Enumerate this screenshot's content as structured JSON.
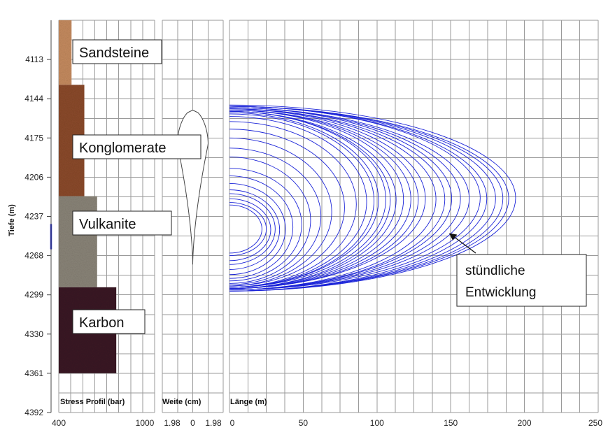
{
  "colors": {
    "sandstone": "#c58b5f",
    "conglomerate": "#8b4a2b",
    "volcanic": "#8a8478",
    "carbon": "#3a1a24",
    "fracture": "#1a23d8",
    "grid": "#9a9a9a",
    "marker": "#1a23d8"
  },
  "chart_data": {
    "type": "line",
    "ylabel": "Tiefe (m)",
    "y_ticks": [
      "4113",
      "4144",
      "4175",
      "4206",
      "4237",
      "4268",
      "4299",
      "4330",
      "4361",
      "4392"
    ],
    "ylim": [
      4082,
      4392
    ],
    "y_inverted": true,
    "grid": true,
    "panels": [
      {
        "id": "stress",
        "label": "Stress Profil (bar)",
        "xlim": [
          400,
          1000
        ],
        "x_ticks": [
          "400",
          "1000"
        ],
        "layers": [
          {
            "name": "Sandsteine",
            "top": 4082,
            "bottom": 4133,
            "stress": 480,
            "color": "sandstone"
          },
          {
            "name": "Konglomerate",
            "top": 4133,
            "bottom": 4221,
            "stress": 560,
            "color": "conglomerate"
          },
          {
            "name": "Vulkanite",
            "top": 4221,
            "bottom": 4293,
            "stress": 640,
            "color": "volcanic"
          },
          {
            "name": "Karbon",
            "top": 4293,
            "bottom": 4361,
            "stress": 760,
            "color": "carbon"
          }
        ],
        "marker": {
          "top": 4243,
          "bottom": 4263
        }
      },
      {
        "id": "width",
        "label": "Weite (cm)",
        "xlim": [
          -1.98,
          1.98
        ],
        "x_ticks": [
          "1.98",
          "0",
          "1.98"
        ],
        "profile": {
          "top": 4153,
          "bottom": 4275,
          "max_half_width": 1.0,
          "max_depth": 4180
        }
      },
      {
        "id": "length",
        "label": "Länge (m)",
        "xlim": [
          0,
          250
        ],
        "x_ticks": [
          "0",
          "50",
          "100",
          "150",
          "200",
          "250"
        ],
        "fractures": [
          {
            "length": 22,
            "top": 4228,
            "bottom": 4266
          },
          {
            "length": 25,
            "top": 4226,
            "bottom": 4268
          },
          {
            "length": 28,
            "top": 4223,
            "bottom": 4272
          },
          {
            "length": 31,
            "top": 4219,
            "bottom": 4275
          },
          {
            "length": 34,
            "top": 4216,
            "bottom": 4279
          },
          {
            "length": 38,
            "top": 4211,
            "bottom": 4283
          },
          {
            "length": 43,
            "top": 4205,
            "bottom": 4286
          },
          {
            "length": 49,
            "top": 4199,
            "bottom": 4288
          },
          {
            "length": 55,
            "top": 4190,
            "bottom": 4290
          },
          {
            "length": 62,
            "top": 4183,
            "bottom": 4291
          },
          {
            "length": 70,
            "top": 4175,
            "bottom": 4292
          },
          {
            "length": 78,
            "top": 4168,
            "bottom": 4292
          },
          {
            "length": 86,
            "top": 4162,
            "bottom": 4293
          },
          {
            "length": 93,
            "top": 4158,
            "bottom": 4293
          },
          {
            "length": 98,
            "top": 4156,
            "bottom": 4293
          },
          {
            "length": 102,
            "top": 4155,
            "bottom": 4293
          },
          {
            "length": 106,
            "top": 4154,
            "bottom": 4293
          },
          {
            "length": 110,
            "top": 4154,
            "bottom": 4294
          },
          {
            "length": 114,
            "top": 4154,
            "bottom": 4294
          },
          {
            "length": 118,
            "top": 4153,
            "bottom": 4294
          },
          {
            "length": 123,
            "top": 4153,
            "bottom": 4294
          },
          {
            "length": 128,
            "top": 4153,
            "bottom": 4294
          },
          {
            "length": 134,
            "top": 4152,
            "bottom": 4294
          },
          {
            "length": 140,
            "top": 4152,
            "bottom": 4295
          },
          {
            "length": 146,
            "top": 4152,
            "bottom": 4295
          },
          {
            "length": 152,
            "top": 4151,
            "bottom": 4295
          },
          {
            "length": 158,
            "top": 4151,
            "bottom": 4295
          },
          {
            "length": 164,
            "top": 4151,
            "bottom": 4295
          },
          {
            "length": 170,
            "top": 4150,
            "bottom": 4295
          },
          {
            "length": 176,
            "top": 4150,
            "bottom": 4296
          },
          {
            "length": 182,
            "top": 4150,
            "bottom": 4296
          },
          {
            "length": 187,
            "top": 4150,
            "bottom": 4296
          },
          {
            "length": 191,
            "top": 4150,
            "bottom": 4296
          },
          {
            "length": 194,
            "top": 4149,
            "bottom": 4296
          }
        ]
      }
    ],
    "annotations": [
      {
        "id": "development",
        "text": [
          "stündliche",
          "Entwicklung"
        ],
        "arrow_to": {
          "x": 148,
          "y": 4250
        }
      }
    ]
  }
}
